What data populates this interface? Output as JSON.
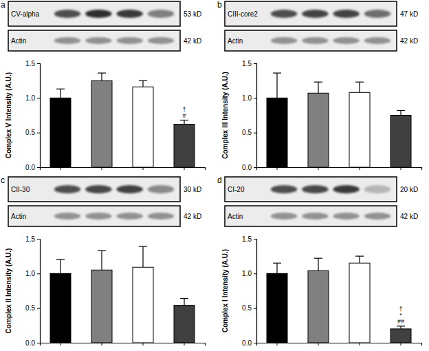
{
  "chart_data": [
    {
      "type": "bar",
      "panel": "a",
      "blot": {
        "target": "CV-alpha",
        "target_size": "53 kD",
        "loading": "Actin",
        "loading_size": "42 kD"
      },
      "y_label": "Complex V Intensity (A.U.)",
      "categories": [
        null,
        null,
        null,
        null
      ],
      "values": [
        1.0,
        1.25,
        1.16,
        0.62
      ],
      "errors": [
        0.13,
        0.11,
        0.09,
        0.06
      ],
      "colors": [
        "#000000",
        "#808080",
        "#ffffff",
        "#404040"
      ],
      "significance": [
        null,
        null,
        null,
        [
          "†",
          "#"
        ]
      ],
      "ylim": [
        0,
        1.5
      ],
      "yticks": [
        {
          "value": 0,
          "label": "0.0"
        },
        0.5,
        {
          "value": 1,
          "label": "1.0"
        },
        1.5
      ]
    },
    {
      "type": "bar",
      "panel": "b",
      "blot": {
        "target": "CIII-core2",
        "target_size": "47 kD",
        "loading": "Actin",
        "loading_size": "42 kD"
      },
      "y_label": "Complex III Intensity (A.U.)",
      "categories": [
        null,
        null,
        null,
        null
      ],
      "values": [
        1.0,
        1.07,
        1.08,
        0.75
      ],
      "errors": [
        0.36,
        0.16,
        0.15,
        0.07
      ],
      "colors": [
        "#000000",
        "#808080",
        "#ffffff",
        "#404040"
      ],
      "ylim": [
        0,
        1.5
      ],
      "yticks": [
        {
          "value": 0,
          "label": "0.0"
        },
        0.5,
        {
          "value": 1,
          "label": "1.0"
        },
        1.5
      ]
    },
    {
      "type": "bar",
      "panel": "c",
      "blot": {
        "target": "CII-30",
        "target_size": "30 kD",
        "loading": "Actin",
        "loading_size": "42 kD"
      },
      "y_label": "Complex II Intensity (A.U.)",
      "categories": [
        null,
        null,
        null,
        null
      ],
      "values": [
        1.0,
        1.05,
        1.09,
        0.54
      ],
      "errors": [
        0.2,
        0.28,
        0.3,
        0.1
      ],
      "colors": [
        "#000000",
        "#808080",
        "#ffffff",
        "#404040"
      ],
      "ylim": [
        0,
        1.5
      ],
      "yticks": [
        {
          "value": 0,
          "label": "0.0"
        },
        0.5,
        {
          "value": 1,
          "label": "1.0"
        },
        1.5
      ]
    },
    {
      "type": "bar",
      "panel": "d",
      "blot": {
        "target": "CI-20",
        "target_size": "20 kD",
        "loading": "Actin",
        "loading_size": "42 kD"
      },
      "y_label": "Complex I Intensity (A.U.)",
      "categories": [
        null,
        null,
        null,
        null
      ],
      "values": [
        1.0,
        1.04,
        1.15,
        0.2
      ],
      "errors": [
        0.15,
        0.18,
        0.1,
        0.04
      ],
      "colors": [
        "#000000",
        "#808080",
        "#ffffff",
        "#404040"
      ],
      "significance": [
        null,
        null,
        null,
        [
          "†",
          "*",
          "##"
        ]
      ],
      "ylim": [
        0,
        1.5
      ],
      "yticks": [
        {
          "value": 0,
          "label": "0.0"
        },
        0.5,
        {
          "value": 1,
          "label": "1.0"
        },
        1.5
      ]
    }
  ]
}
